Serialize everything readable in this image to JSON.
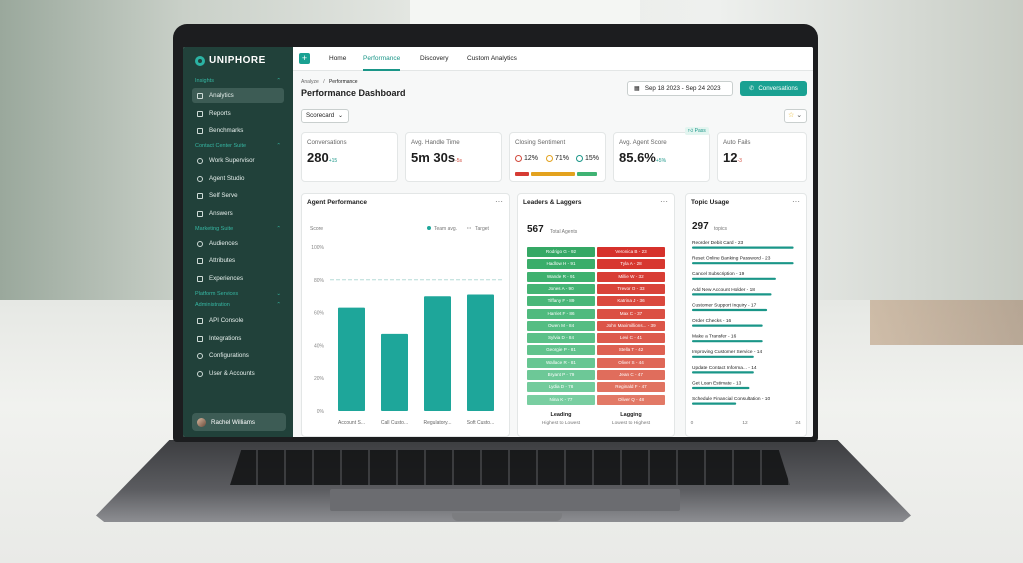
{
  "app": {
    "brand": "UNIPHORE"
  },
  "sidebar": {
    "sections": [
      {
        "label": "Insights",
        "items": [
          "Analytics",
          "Reports",
          "Benchmarks"
        ]
      },
      {
        "label": "Contact Center Suite",
        "items": [
          "Work Supervisor",
          "Agent Studio",
          "Self Serve",
          "Answers"
        ]
      },
      {
        "label": "Marketing Suite",
        "items": [
          "Audiences",
          "Attributes",
          "Experiences"
        ]
      },
      {
        "label": "Platform Services",
        "items": []
      },
      {
        "label": "Administration",
        "items": [
          "API Console",
          "Integrations",
          "Configurations",
          "User & Accounts"
        ]
      }
    ],
    "active_item": "Analytics",
    "user_name": "Rachel Williams"
  },
  "topbar": {
    "tabs": [
      "Home",
      "Performance",
      "Discovery",
      "Custom Analytics"
    ],
    "active_tab": "Performance"
  },
  "header": {
    "breadcrumb_root": "Analyze",
    "breadcrumb_sep": "/",
    "breadcrumb_current": "Performance",
    "title": "Performance Dashboard",
    "date_range": "Sep 18 2023 - Sep 24 2023",
    "conversations_button": "Conversations",
    "scorecard_select": "Scorecard"
  },
  "kpis": [
    {
      "label": "Conversations",
      "value": "280",
      "delta": "+15",
      "delta_dir": "up"
    },
    {
      "label": "Avg. Handle Time",
      "value": "5m 30s",
      "delta": "-5s",
      "delta_dir": "down"
    },
    {
      "label": "Closing Sentiment",
      "negative": "12%",
      "neutral": "71%",
      "positive": "15%"
    },
    {
      "label": "Avg. Agent Score",
      "value": "85.6%",
      "delta": "+5%",
      "delta_dir": "up",
      "badge": "Pass"
    },
    {
      "label": "Auto Fails",
      "value": "12",
      "delta": "-3",
      "delta_dir": "down"
    }
  ],
  "agent_performance": {
    "title": "Agent Performance",
    "legend_team": "Team avg.",
    "legend_target": "Target",
    "chart_data": {
      "type": "bar",
      "ylabel": "Score",
      "ylim": [
        0,
        100
      ],
      "yticks": [
        "100%",
        "80%",
        "60%",
        "40%",
        "20%",
        "0%"
      ],
      "target": 80,
      "categories": [
        "Account S...",
        "Call Custo...",
        "Regulatory...",
        "Soft Custo..."
      ],
      "values": [
        63,
        47,
        70,
        71
      ],
      "color": "#1ea69a"
    }
  },
  "leaders_laggers": {
    "title": "Leaders & Laggers",
    "total": "567",
    "total_label": "Total Agents",
    "leading_label": "Leading",
    "leading_sub": "Highest to Lowest",
    "lagging_label": "Lagging",
    "lagging_sub": "Lowest to Highest",
    "leaders": [
      "Rodrigo G - 92",
      "Hadlow H - 91",
      "Wande R - 91",
      "Jones A - 90",
      "Tiffany F - 89",
      "Harriet F - 86",
      "Owen M - 84",
      "Sylvia D - 84",
      "Georgie P - 81",
      "Wallace R - 81",
      "Bryant P - 79",
      "Lydia D - 78",
      "Nina K - 77"
    ],
    "laggers": [
      "Veronica B - 23",
      "Tyla A - 28",
      "Millie W - 32",
      "Trevor O - 33",
      "Katrina J - 36",
      "Max C - 37",
      "John Maximillions... - 39",
      "Levi C - 41",
      "Stella T - 42",
      "Oliver S - 44",
      "Jean C - 47",
      "Reginald F - 47",
      "Oliver Q - 48"
    ]
  },
  "topic_usage": {
    "title": "Topic Usage",
    "total": "297",
    "total_label": "topics",
    "chart_data": {
      "type": "bar",
      "orientation": "horizontal",
      "xlim": [
        0,
        24
      ],
      "xticks": [
        "0",
        "12",
        "24"
      ],
      "categories": [
        "Reorder Debit Card",
        "Reset Online Banking Password",
        "Cancel Subscription",
        "Add New Account Holder",
        "Customer Support Inquiry",
        "Order Checks",
        "Make a Transfer",
        "Improving Customer Service",
        "Update Contact Informa...",
        "Get Loan Estimate",
        "Schedule Financial Consultation"
      ],
      "values": [
        23,
        23,
        19,
        18,
        17,
        16,
        16,
        14,
        14,
        13,
        10
      ],
      "labels": [
        "Reorder Debit Card - 23",
        "Reset Online Banking Password - 23",
        "Cancel Subscription - 19",
        "Add New Account Holder - 18",
        "Customer Support Inquiry - 17",
        "Order Checks - 16",
        "Make a Transfer - 16",
        "Improving Customer Service - 14",
        "Update Contact Informa... - 14",
        "Get Loan Estimate - 13",
        "Schedule Financial Consultation - 10"
      ],
      "color": "#1a9688"
    }
  },
  "colors": {
    "accent": "#1aa192",
    "sidebar": "#21413a",
    "leader": "#3fb373",
    "lagger": "#d63b33"
  }
}
